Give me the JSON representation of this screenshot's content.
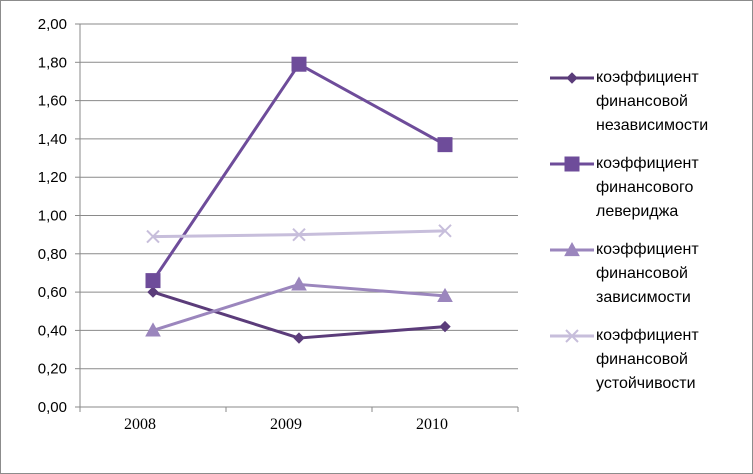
{
  "chart_data": {
    "type": "line",
    "categories": [
      "2008",
      "2009",
      "2010"
    ],
    "ylim": [
      0,
      2
    ],
    "yticks": [
      "0,00",
      "0,20",
      "0,40",
      "0,60",
      "0,80",
      "1,00",
      "1,20",
      "1,40",
      "1,60",
      "1,80",
      "2,00"
    ],
    "grid": true,
    "legend_position": "right",
    "series": [
      {
        "name": "коэффициент\nфинансовой\nнезависимости",
        "values": [
          0.6,
          0.36,
          0.42
        ],
        "color": "#5b3c7a",
        "marker": "diamond"
      },
      {
        "name": "коэффициент\nфинансового\nлевериджа",
        "values": [
          0.66,
          1.79,
          1.37
        ],
        "color": "#6e4c9a",
        "marker": "square"
      },
      {
        "name": "коэффициент\nфинансовой\nзависимости",
        "values": [
          0.4,
          0.64,
          0.58
        ],
        "color": "#9b86bd",
        "marker": "triangle"
      },
      {
        "name": "коэффициент\nфинансовой\nустойчивости",
        "values": [
          0.89,
          0.9,
          0.92
        ],
        "color": "#c7bedb",
        "marker": "x"
      }
    ]
  }
}
